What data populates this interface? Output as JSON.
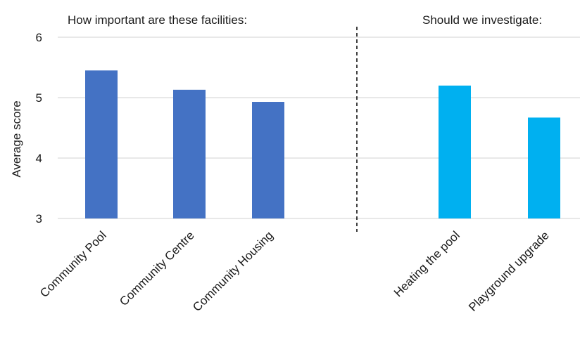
{
  "chart_data": {
    "type": "bar",
    "ylabel": "Average score",
    "ylim": [
      3,
      6
    ],
    "yticks": [
      3,
      4,
      5,
      6
    ],
    "grid": true,
    "groups": [
      {
        "title": "How important are these facilities:",
        "color": "#4472C4",
        "categories": [
          "Community Pool",
          "Community Centre",
          "Community Housing"
        ],
        "values": [
          5.45,
          5.13,
          4.93
        ]
      },
      {
        "title": "Should we investigate:",
        "color": "#00B0F0",
        "categories": [
          "Heating the pool",
          "Playground upgrade"
        ],
        "values": [
          5.2,
          4.67
        ]
      }
    ],
    "divider": "dashed vertical line between groups"
  }
}
